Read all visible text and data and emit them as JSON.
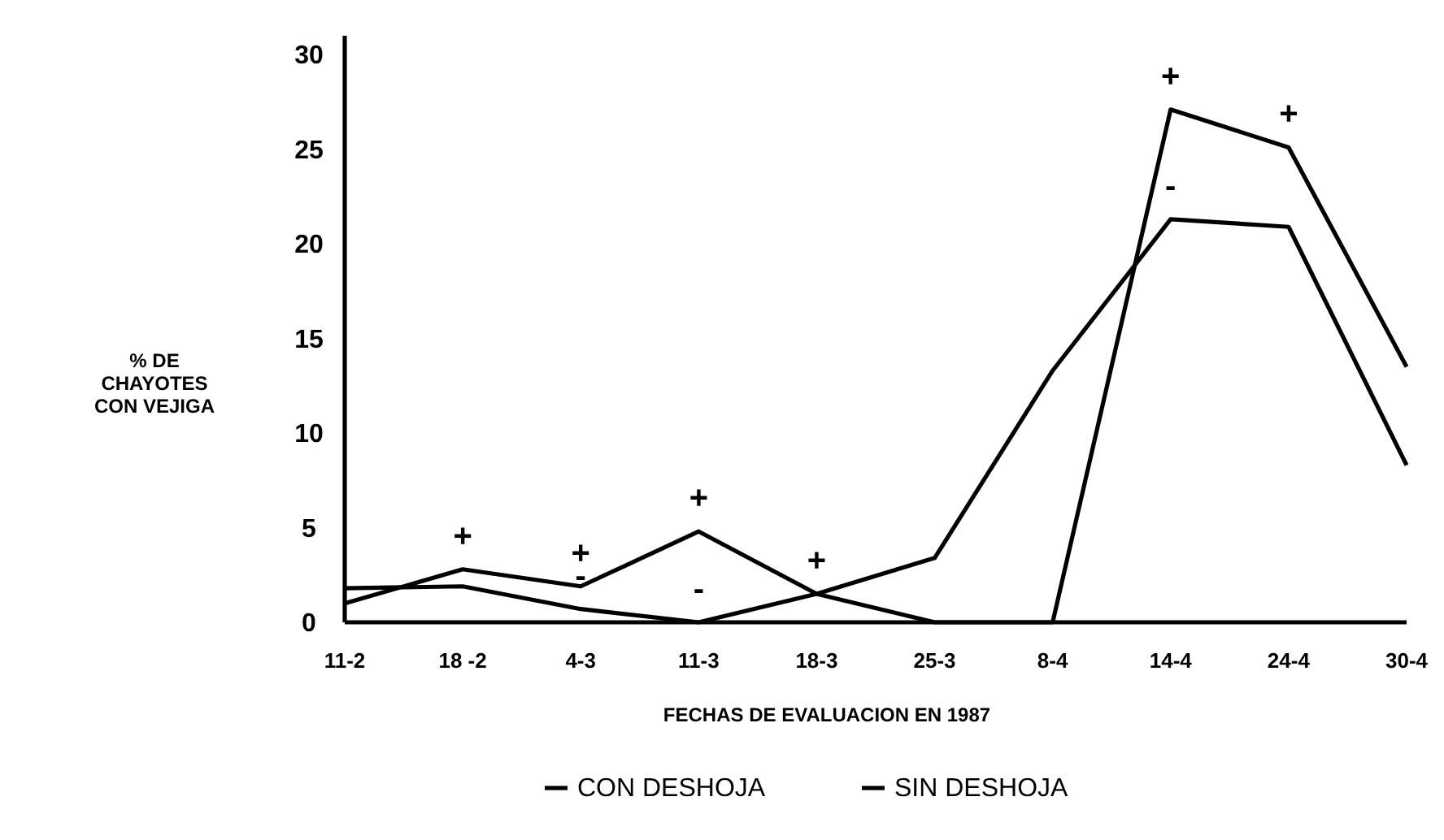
{
  "chart_data": {
    "type": "line",
    "xlabel": "FECHAS DE EVALUACION EN 1987",
    "ylabel": "% DE\nCHAYOTES\nCON VEJIGA",
    "categories": [
      "11-2",
      "18 -2",
      "4-3",
      "11-3",
      "18-3",
      "25-3",
      "8-4",
      "14-4",
      "24-4",
      "30-4"
    ],
    "series": [
      {
        "name": "CON DESHOJA",
        "color": "#000000",
        "values": [
          1.8,
          1.9,
          0.7,
          0,
          1.5,
          3.4,
          13.3,
          21.3,
          20.9,
          8.3
        ]
      },
      {
        "name": "SIN DESHOJA",
        "color": "#000000",
        "values": [
          1.0,
          2.8,
          1.9,
          4.8,
          1.5,
          0,
          0,
          27.1,
          25.1,
          13.5
        ]
      }
    ],
    "annotations": [
      {
        "text": "+",
        "x": "18 -2",
        "y": 2.8
      },
      {
        "text": "+",
        "x": "4-3",
        "y": 1.9
      },
      {
        "text": "+",
        "x": "11-3",
        "y": 4.8
      },
      {
        "text": "+",
        "x": "18-3",
        "y": 1.5
      },
      {
        "text": "+",
        "x": "14-4",
        "y": 27.1
      },
      {
        "text": "+",
        "x": "24-4",
        "y": 25.1
      },
      {
        "text": "-",
        "x": "4-3",
        "y": 0.7
      },
      {
        "text": "-",
        "x": "11-3",
        "y": 0
      },
      {
        "text": "-",
        "x": "14-4",
        "y": 21.3
      }
    ],
    "ylim": [
      0,
      31
    ],
    "yticks": [
      0,
      5,
      10,
      15,
      20,
      25,
      30
    ],
    "grid": false,
    "legend": "bottom",
    "line_style": "solid"
  }
}
